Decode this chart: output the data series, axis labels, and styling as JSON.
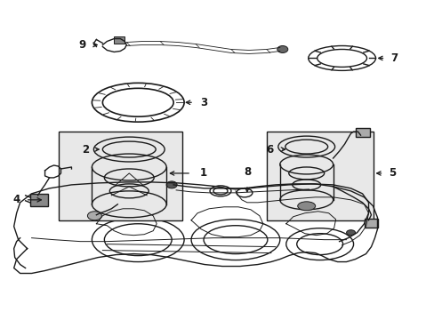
{
  "title": "",
  "background_color": "#ffffff",
  "line_color": "#1a1a1a",
  "label_color": "#000000",
  "fig_width": 4.89,
  "fig_height": 3.6,
  "dpi": 100,
  "box_fill": "#e8e8e8",
  "lw_main": 1.0,
  "lw_thin": 0.7
}
